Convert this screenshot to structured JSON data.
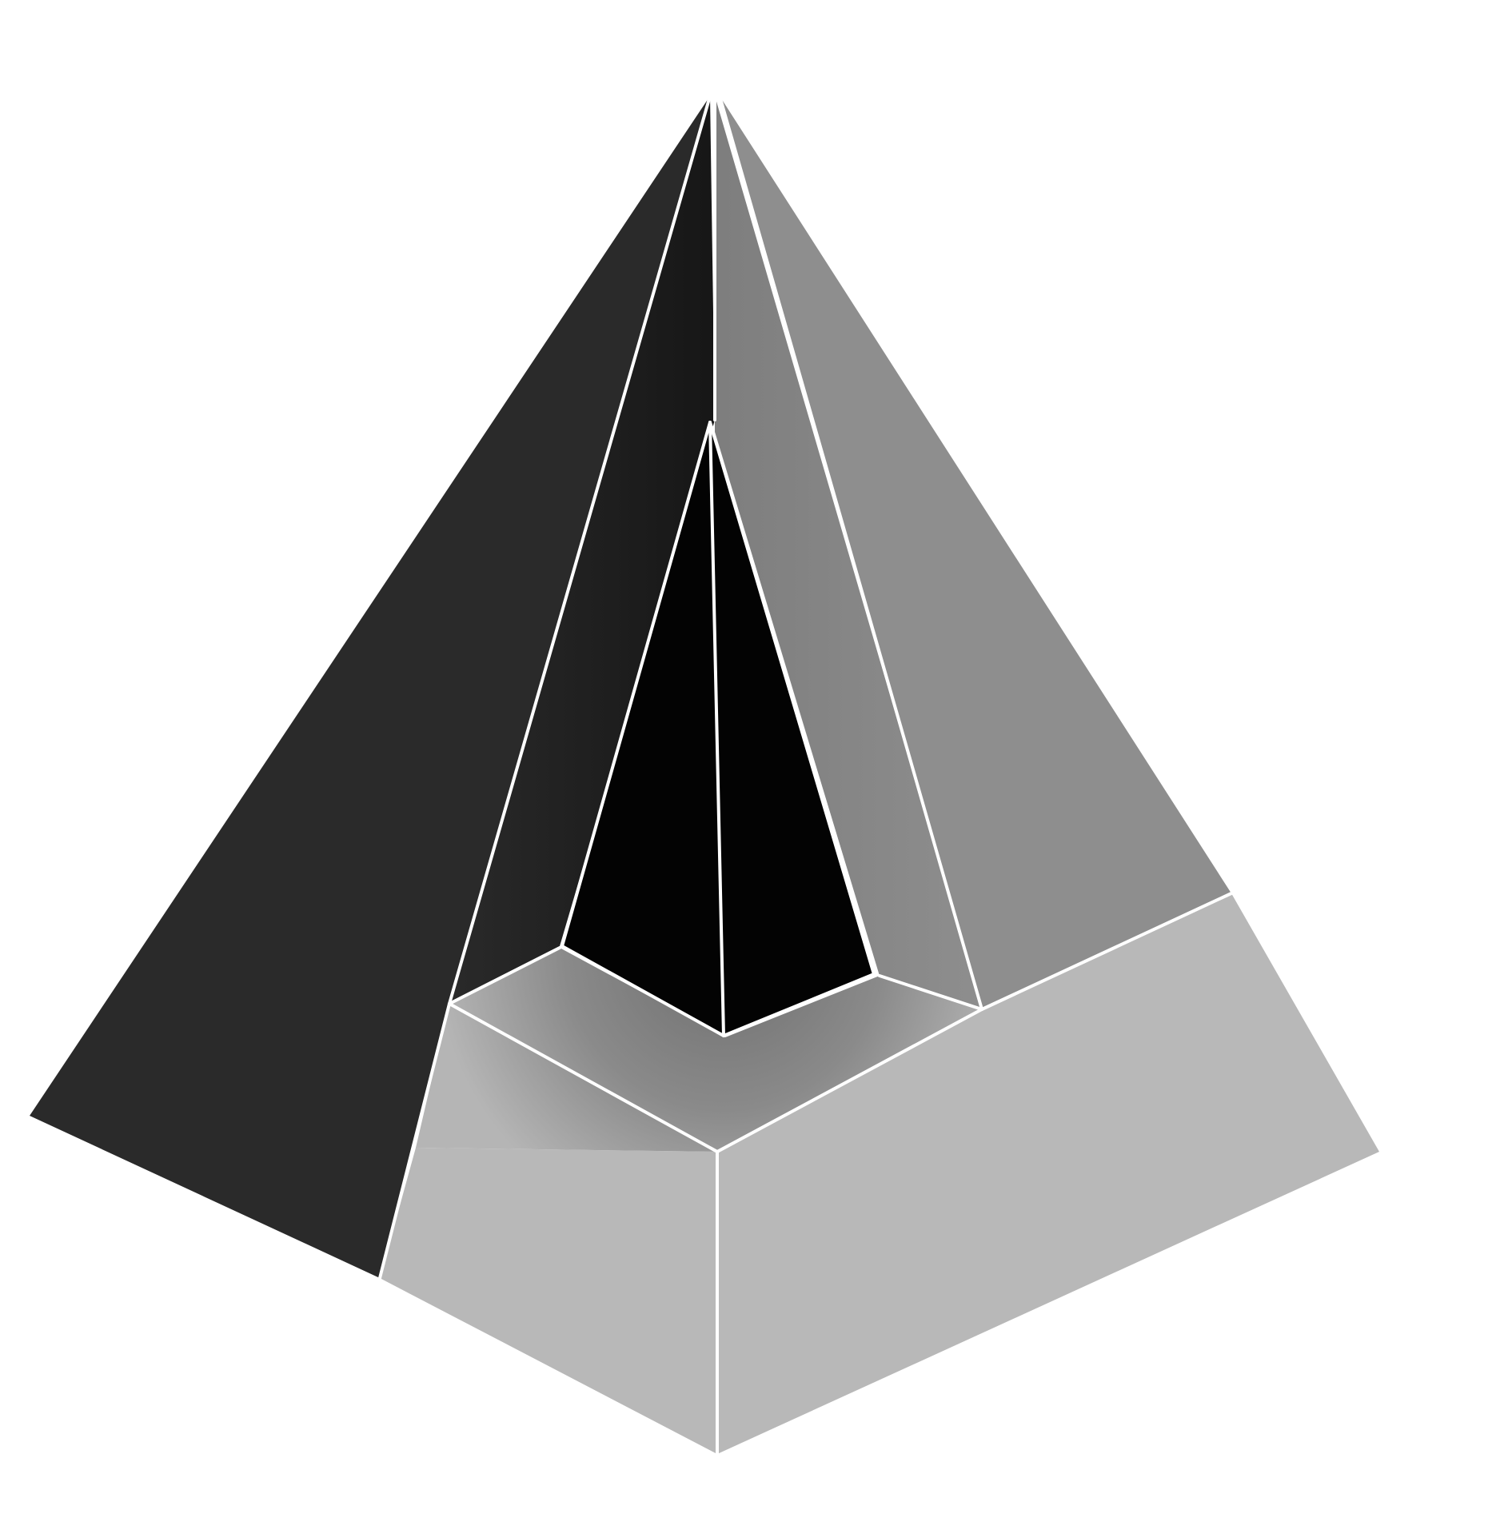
{
  "figure": {
    "kind": "pyramid-with-cutaway-inner-pyramid",
    "colors": {
      "background": "#ffffff",
      "left_face": "#2a2a2a",
      "right_face": "#8e8e8e",
      "base_band": "#b8b8b8",
      "inner_pyramid": "#030303",
      "cut_floor": "#7a7a7a",
      "edge_line": "#ffffff"
    }
  }
}
